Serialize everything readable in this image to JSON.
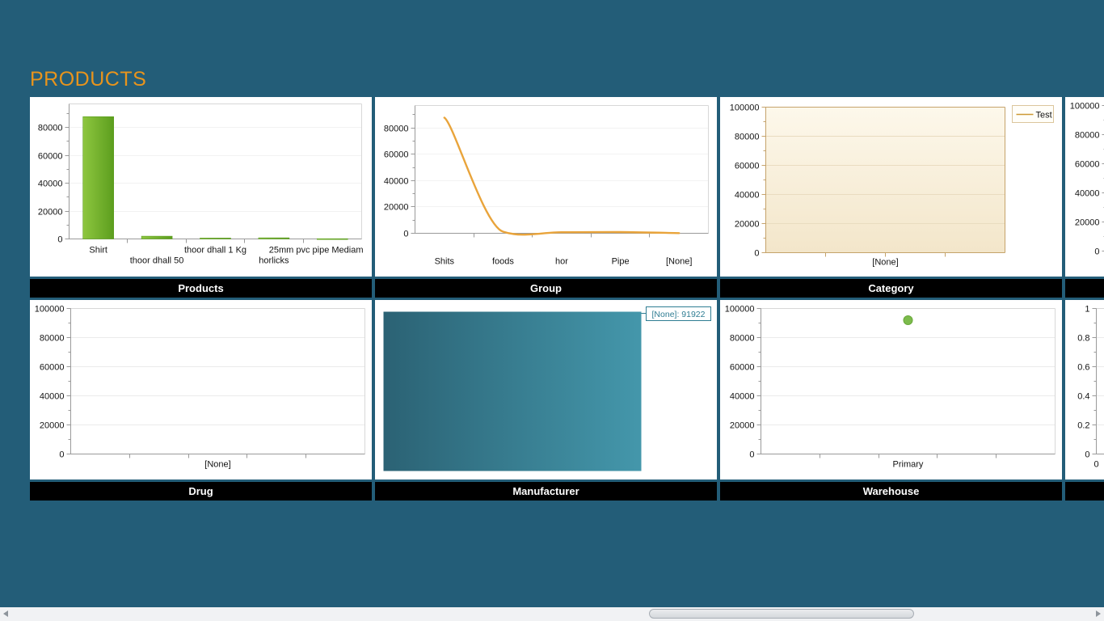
{
  "page": {
    "title": "PRODUCTS",
    "colors": {
      "background": "#235D78",
      "heading": "#E8941C",
      "panel_bg": "#FFFFFF",
      "title_bar_bg": "#000000",
      "title_bar_text": "#FFFFFF"
    }
  },
  "panels": [
    {
      "title": "Products",
      "chart_data": {
        "type": "bar",
        "categories": [
          "Shirt",
          "thoor dhall 50",
          "thoor dhall 1 Kg",
          "horlicks",
          "25mm pvc pipe Mediam"
        ],
        "values": [
          87800,
          2000,
          650,
          800,
          200
        ],
        "ylim": [
          0,
          97000
        ],
        "yticks": [
          0,
          20000,
          40000,
          60000,
          80000
        ],
        "bar_color_light": "#8EC63F",
        "bar_color_dark": "#5C9E1E",
        "legend": "none"
      }
    },
    {
      "title": "Group",
      "chart_data": {
        "type": "line",
        "categories": [
          "Shits",
          "foods",
          "hor",
          "Pipe",
          "[None]"
        ],
        "values": [
          87800,
          1200,
          800,
          900,
          150
        ],
        "ylim": [
          0,
          97000
        ],
        "yticks": [
          0,
          20000,
          40000,
          60000,
          80000
        ],
        "line_color": "#E9A43B",
        "legend": "none"
      }
    },
    {
      "title": "Category",
      "chart_data": {
        "type": "area",
        "categories": [
          "[None]"
        ],
        "series": [
          {
            "name": "Test",
            "values": []
          }
        ],
        "xlabel": "[None]",
        "ylim": [
          0,
          100000
        ],
        "yticks": [
          0,
          20000,
          40000,
          60000,
          80000,
          100000
        ],
        "legend": {
          "position": "top-right",
          "entries": [
            "Test"
          ],
          "line_color": "#CC9933"
        },
        "plot_bg_top": "#FDF8EB",
        "plot_bg_bottom": "#F3E6CA",
        "axis_color": "#C5A36B",
        "grid_color": "#E9DCC0"
      }
    },
    {
      "title": "",
      "chart_data": {
        "type": "empty",
        "xlabel": "",
        "ylim": [
          0,
          100000
        ],
        "yticks": [
          0,
          20000,
          40000,
          60000,
          80000,
          100000
        ]
      }
    },
    {
      "title": "Drug",
      "chart_data": {
        "type": "empty",
        "xlabel": "[None]",
        "ylim": [
          0,
          100000
        ],
        "yticks": [
          0,
          20000,
          40000,
          60000,
          80000,
          100000
        ]
      }
    },
    {
      "title": "Manufacturer",
      "chart_data": {
        "type": "funnel",
        "items": [
          {
            "label": "[None]",
            "value": 91922
          }
        ],
        "callout_text": "[None]: 91922",
        "fill_left": "#2B6274",
        "fill_right": "#4497AB",
        "callout_color": "#2F7D93"
      }
    },
    {
      "title": "Warehouse",
      "chart_data": {
        "type": "scatter",
        "categories": [
          "Primary"
        ],
        "points": [
          {
            "category": "Primary",
            "value": 91922
          }
        ],
        "xlabel": "Primary",
        "ylim": [
          0,
          100000
        ],
        "yticks": [
          0,
          20000,
          40000,
          60000,
          80000,
          100000
        ],
        "point_color": "#7CBB4C",
        "point_stroke": "#69A83B"
      }
    },
    {
      "title": "",
      "chart_data": {
        "type": "empty",
        "ylim": [
          0,
          1
        ],
        "yticks": [
          0,
          0.2,
          0.4,
          0.6,
          0.8,
          1
        ],
        "xticks": [
          "0"
        ]
      }
    }
  ],
  "scrollbar": {
    "orientation": "horizontal",
    "thumb_left": 803,
    "thumb_width": 328
  }
}
